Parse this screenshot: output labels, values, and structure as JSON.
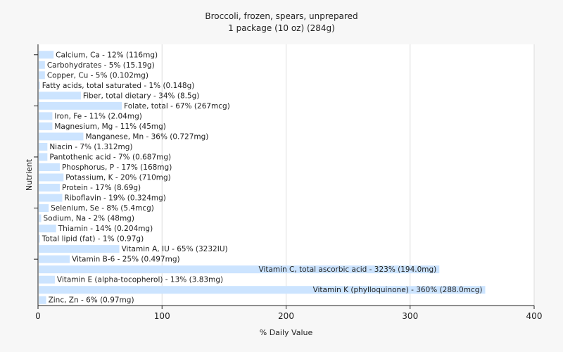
{
  "chart_data": {
    "type": "bar",
    "orientation": "horizontal",
    "title": "Broccoli, frozen, spears, unprepared",
    "subtitle": "1 package (10 oz) (284g)",
    "xlabel": "% Daily Value",
    "ylabel": "Nutrient",
    "xlim": [
      0,
      400
    ],
    "xticks": [
      0,
      100,
      200,
      300,
      400
    ],
    "grid": true,
    "bar_color": "#cce4ff",
    "categories": [
      "Calcium, Ca",
      "Carbohydrates",
      "Copper, Cu",
      "Fatty acids, total saturated",
      "Fiber, total dietary",
      "Folate, total",
      "Iron, Fe",
      "Magnesium, Mg",
      "Manganese, Mn",
      "Niacin",
      "Pantothenic acid",
      "Phosphorus, P",
      "Potassium, K",
      "Protein",
      "Riboflavin",
      "Selenium, Se",
      "Sodium, Na",
      "Thiamin",
      "Total lipid (fat)",
      "Vitamin A, IU",
      "Vitamin B-6",
      "Vitamin C, total ascorbic acid",
      "Vitamin E (alpha-tocopherol)",
      "Vitamin K (phylloquinone)",
      "Zinc, Zn"
    ],
    "values": [
      12,
      5,
      5,
      1,
      34,
      67,
      11,
      11,
      36,
      7,
      7,
      17,
      20,
      17,
      19,
      8,
      2,
      14,
      1,
      65,
      25,
      323,
      13,
      360,
      6
    ],
    "labels": [
      "Calcium, Ca - 12% (116mg)",
      "Carbohydrates - 5% (15.19g)",
      "Copper, Cu - 5% (0.102mg)",
      "Fatty acids, total saturated - 1% (0.148g)",
      "Fiber, total dietary - 34% (8.5g)",
      "Folate, total - 67% (267mcg)",
      "Iron, Fe - 11% (2.04mg)",
      "Magnesium, Mg - 11% (45mg)",
      "Manganese, Mn - 36% (0.727mg)",
      "Niacin - 7% (1.312mg)",
      "Pantothenic acid - 7% (0.687mg)",
      "Phosphorus, P - 17% (168mg)",
      "Potassium, K - 20% (710mg)",
      "Protein - 17% (8.69g)",
      "Riboflavin - 19% (0.324mg)",
      "Selenium, Se - 8% (5.4mcg)",
      "Sodium, Na - 2% (48mg)",
      "Thiamin - 14% (0.204mg)",
      "Total lipid (fat) - 1% (0.97g)",
      "Vitamin A, IU - 65% (3232IU)",
      "Vitamin B-6 - 25% (0.497mg)",
      "Vitamin C, total ascorbic acid - 323% (194.0mg)",
      "Vitamin E (alpha-tocopherol) - 13% (3.83mg)",
      "Vitamin K (phylloquinone) - 360% (288.0mcg)",
      "Zinc, Zn - 6% (0.97mg)"
    ]
  }
}
